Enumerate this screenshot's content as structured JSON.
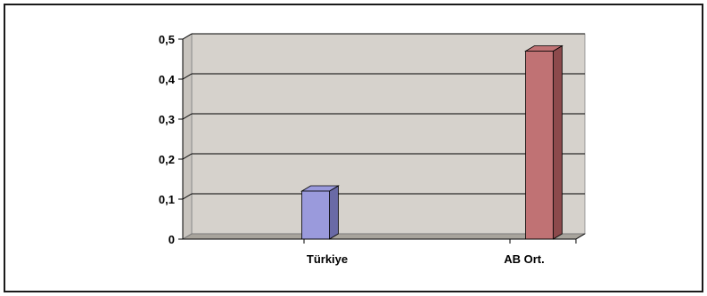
{
  "chart_data": {
    "type": "bar",
    "categories": [
      "Türkiye",
      "AB Ort."
    ],
    "values": [
      0.12,
      0.47
    ],
    "y_tick_labels": [
      "0",
      "0,1",
      "0,2",
      "0,3",
      "0,4",
      "0,5"
    ],
    "y_ticks": [
      0,
      0.1,
      0.2,
      0.3,
      0.4,
      0.5
    ],
    "ylim": [
      0,
      0.5
    ],
    "grid": true,
    "style": "3d-column",
    "colors": {
      "bars": [
        "#9a9adc",
        "#c07274"
      ],
      "bar_sides": [
        "#6a6aa6",
        "#8c4a4c"
      ],
      "plot_wall": "#d6d2cc",
      "floor": "#a8a49c",
      "gridlines": "#000000"
    }
  }
}
